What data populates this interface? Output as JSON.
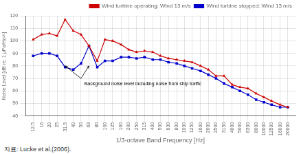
{
  "chart_data": {
    "type": "line",
    "log": "x",
    "x": [
      12.5,
      16,
      20,
      25,
      31.5,
      40,
      50,
      63,
      80,
      100,
      125,
      160,
      200,
      250,
      315,
      400,
      500,
      630,
      800,
      1000,
      1250,
      1600,
      2000,
      2500,
      3150,
      4000,
      5000,
      6300,
      8000,
      10000,
      12500,
      16000,
      20000
    ],
    "series": [
      {
        "name": "Wind turbine operating: Wind 13 m/s",
        "color": "#cc0000",
        "marker": "triangle",
        "values": [
          101,
          105,
          106,
          104,
          117,
          108,
          105,
          96,
          84,
          101,
          100,
          97,
          93,
          91,
          92,
          91,
          88,
          86,
          85,
          84,
          83,
          80,
          77,
          72,
          72,
          65,
          63,
          62,
          58,
          55,
          52,
          49,
          47
        ]
      },
      {
        "name": "Wind turbine stopped: Wind 13 m/s",
        "color": "#0000cc",
        "marker": "square",
        "values": [
          88,
          90,
          90,
          88,
          79,
          77,
          82,
          96,
          79,
          84,
          84,
          87,
          87,
          86,
          87,
          85,
          85,
          83,
          82,
          80,
          78,
          76,
          73,
          70,
          66,
          63,
          60,
          57,
          53,
          51,
          49,
          47,
          47
        ]
      }
    ],
    "xlabel": "1/3-octave Band Frequency [Hz]",
    "ylabel": "Noise Level [dB re. 1 μPa/Hz²/¹]",
    "xlim": [
      10,
      25000
    ],
    "xticks": [
      12.5,
      16,
      20,
      25,
      31.5,
      40,
      50,
      63,
      80,
      100,
      125,
      160,
      200,
      250,
      315,
      400,
      500,
      630,
      800,
      1000,
      1250,
      1600,
      2000,
      2500,
      3150,
      4000,
      5000,
      6300,
      8000,
      10000,
      12500,
      16000,
      20000
    ],
    "ylim": [
      40,
      120
    ],
    "yticks": [
      40,
      50,
      60,
      70,
      80,
      90,
      100,
      110,
      120
    ],
    "grid": true,
    "legend": "upper right",
    "annotations": [
      {
        "text": "Background noise level including noise from ship traffic",
        "x": 55,
        "y": 67.5,
        "arrows": [
          {
            "x": 50,
            "y": 70,
            "to_x": 31.5,
            "to_y": 80
          },
          {
            "x": 50,
            "y": 70,
            "to_x": 63,
            "to_y": 80
          }
        ]
      }
    ],
    "source": "자료: Lucke et al.(2006)."
  }
}
